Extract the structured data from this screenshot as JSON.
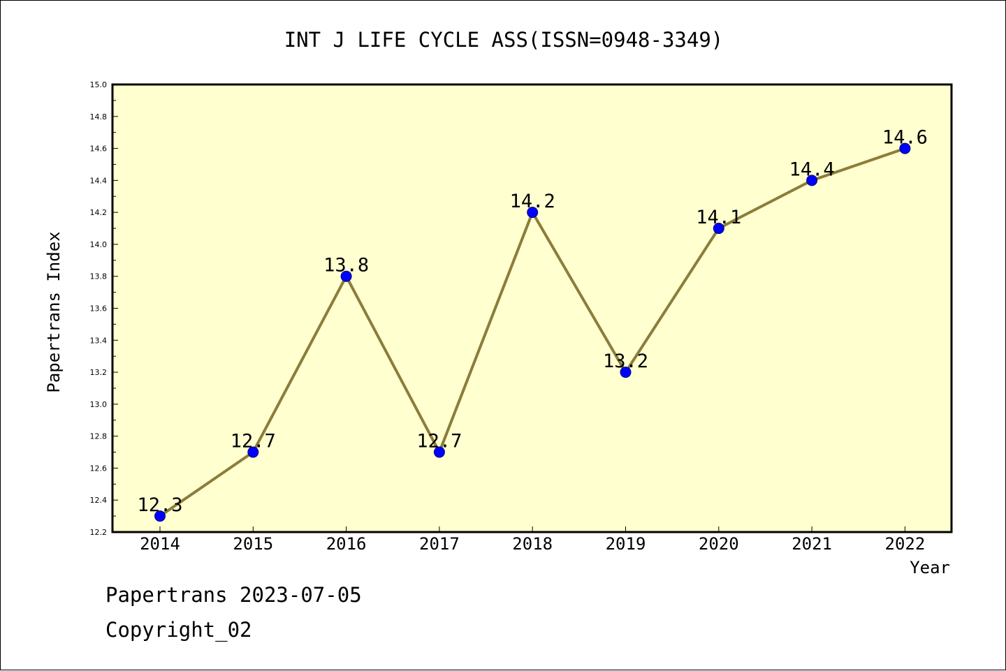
{
  "chart_data": {
    "type": "line",
    "title": "INT J LIFE CYCLE ASS(ISSN=0948-3349)",
    "xlabel": "Year",
    "ylabel": "Papertrans Index",
    "categories": [
      "2014",
      "2015",
      "2016",
      "2017",
      "2018",
      "2019",
      "2020",
      "2021",
      "2022"
    ],
    "series": [
      {
        "values": [
          12.3,
          12.7,
          13.8,
          12.7,
          14.2,
          13.2,
          14.1,
          14.4,
          14.6
        ],
        "data_labels": [
          "12.3",
          "12.7",
          "13.8",
          "12.7",
          "14.2",
          "13.2",
          "14.1",
          "14.4",
          "14.6"
        ]
      }
    ],
    "ylim": [
      12.2,
      15.0
    ],
    "yticks": [
      "12.2",
      "12.4",
      "12.6",
      "12.8",
      "13.0",
      "13.2",
      "13.4",
      "13.6",
      "13.8",
      "14.0",
      "14.2",
      "14.4",
      "14.6",
      "14.8",
      "15.0"
    ],
    "grid": false,
    "legend": "none"
  },
  "footer": {
    "line1": "Papertrans 2023-07-05",
    "line2": "Copyright_02"
  },
  "colors": {
    "plot_background": "#ffffd0",
    "line": "#8b7d3a",
    "marker_fill": "#0000ff",
    "marker_edge": "#000080",
    "axis": "#000000",
    "text": "#000000"
  }
}
